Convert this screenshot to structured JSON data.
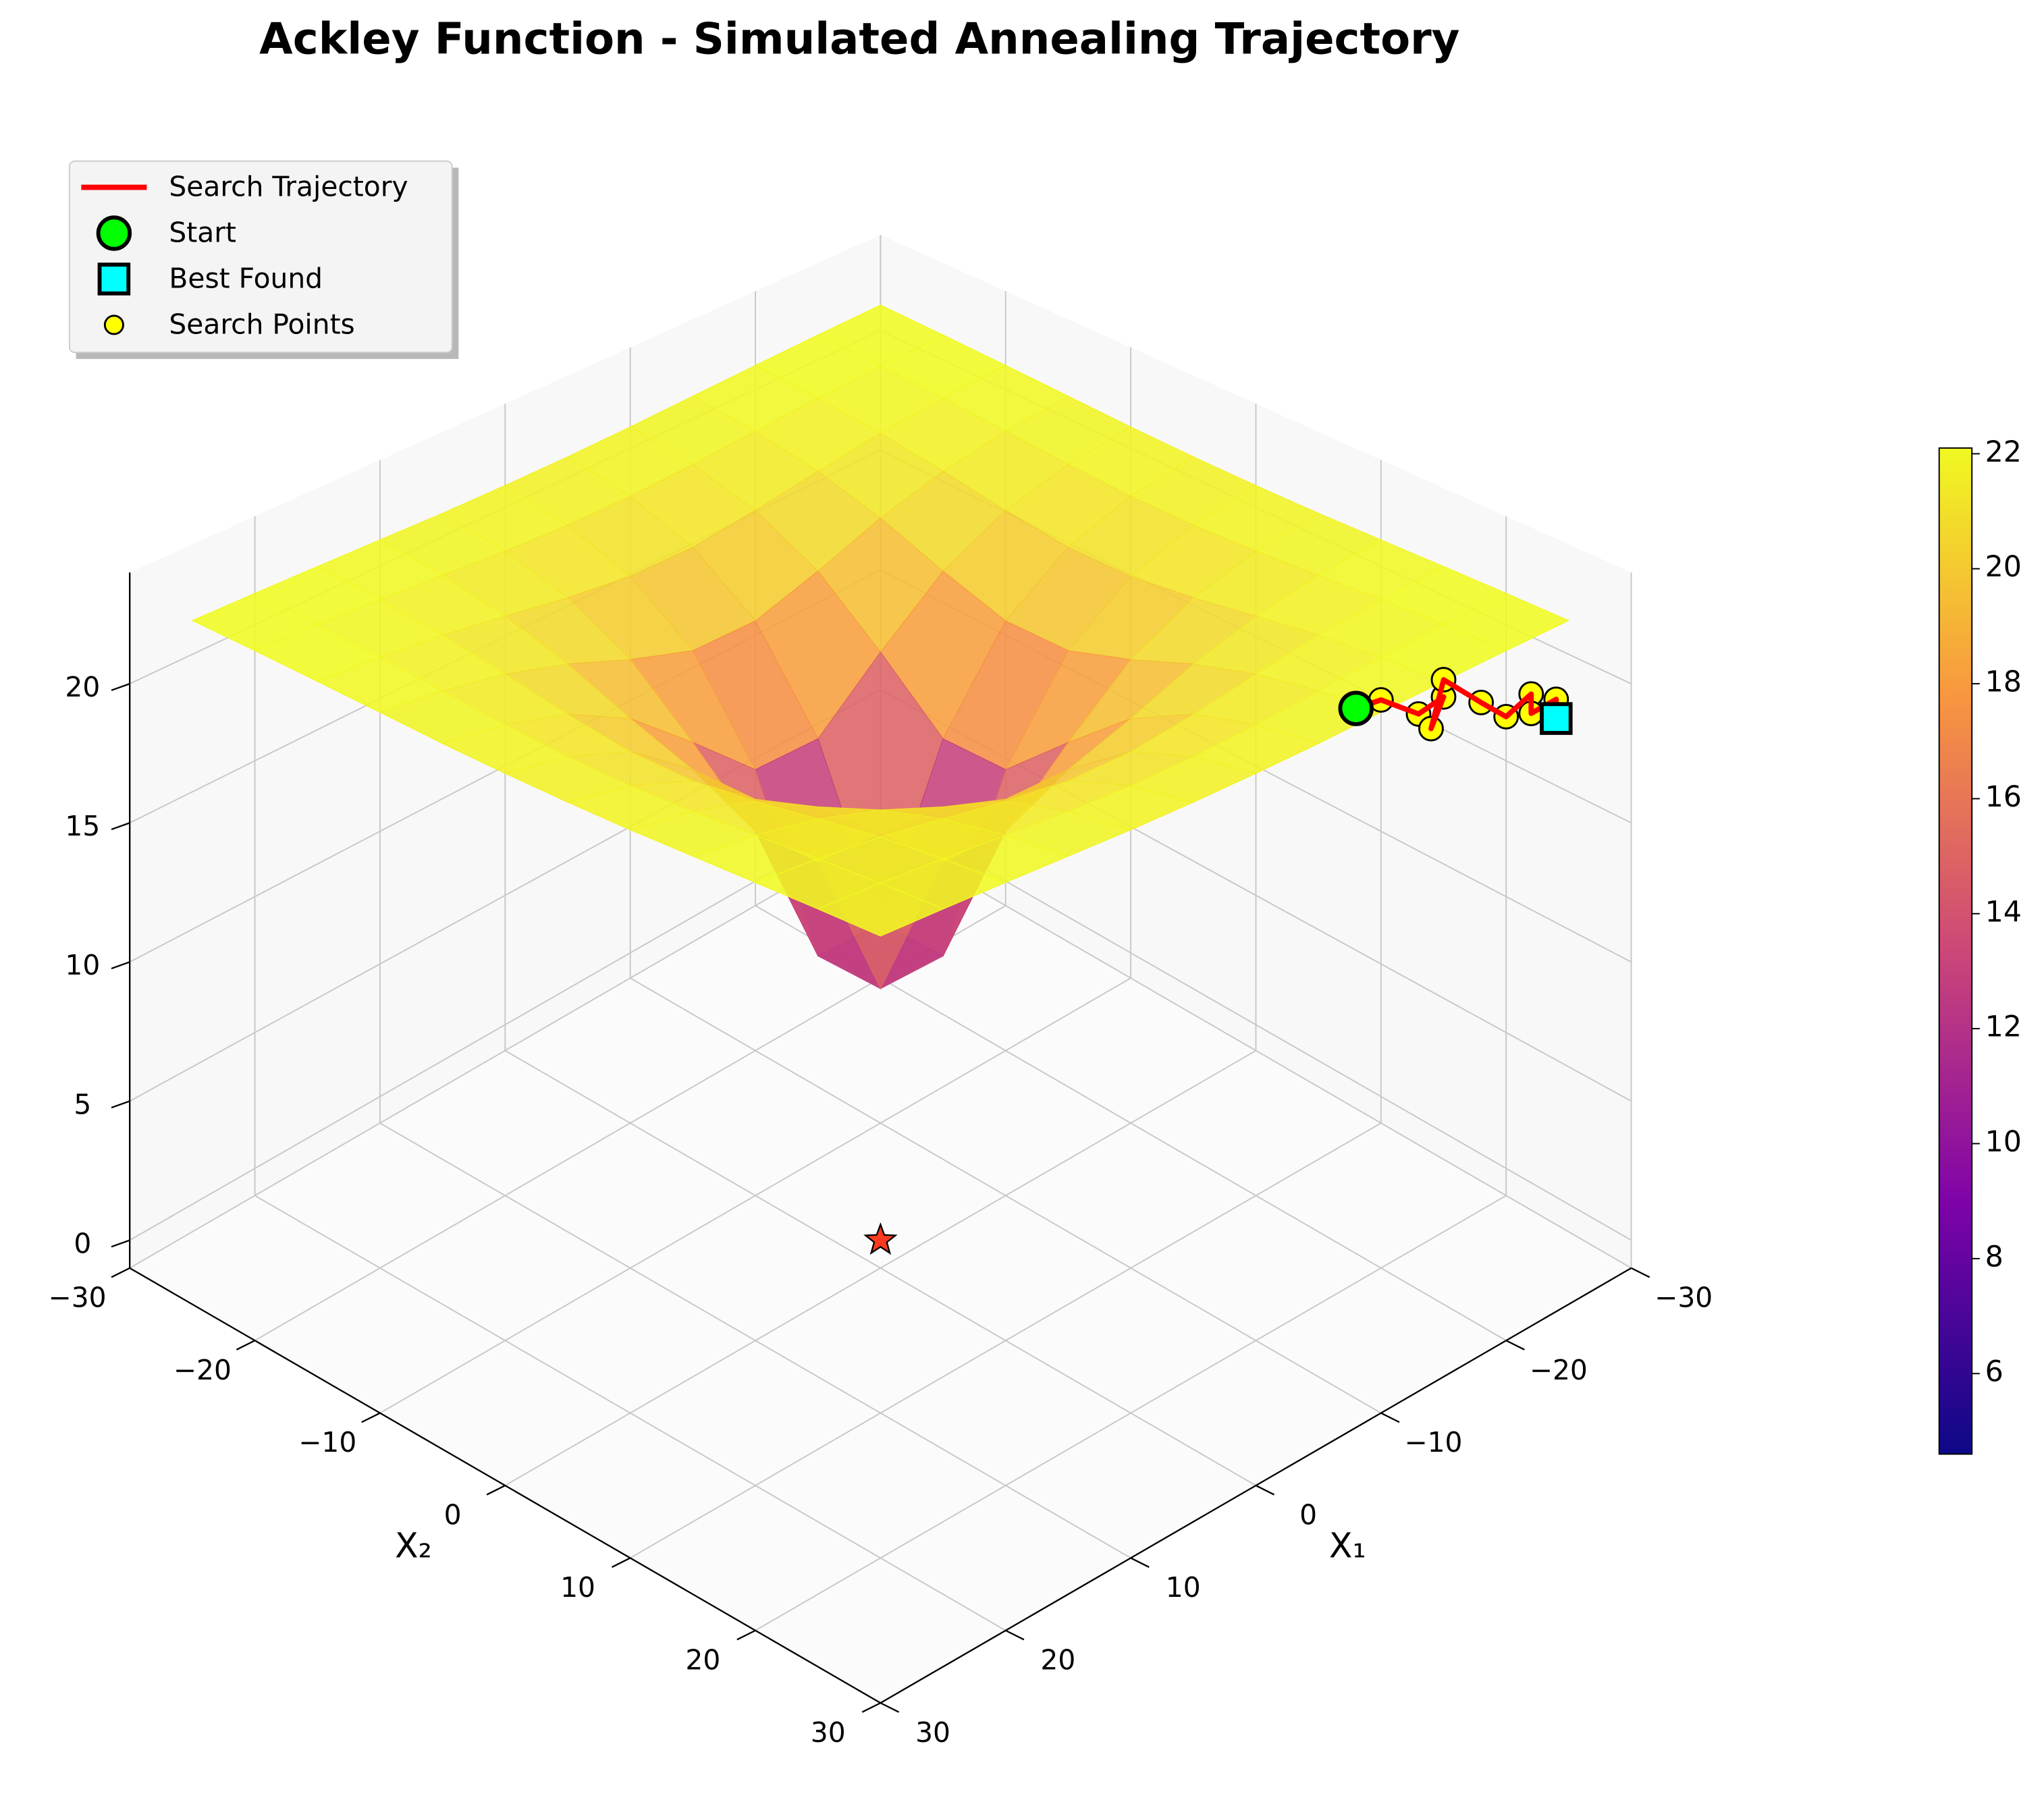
{
  "chart_data": {
    "type": "surface3d",
    "title": "Ackley Function - Simulated Annealing Trajectory",
    "xlabel": "X₁",
    "ylabel": "X₂",
    "colormap": "plasma",
    "x": [
      -27.5,
      -22.5,
      -17.5,
      -12.5,
      -7.5,
      -2.5,
      2.5,
      7.5,
      12.5,
      17.5,
      22.5,
      27.5
    ],
    "y": [
      -27.5,
      -22.5,
      -17.5,
      -12.5,
      -7.5,
      -2.5,
      2.5,
      7.5,
      12.5,
      17.5,
      22.5,
      27.5
    ],
    "z": [
      [
        22.27,
        22.22,
        22.15,
        22.07,
        21.99,
        21.95,
        21.95,
        21.99,
        22.07,
        22.15,
        22.22,
        22.27
      ],
      [
        22.22,
        22.13,
        21.99,
        21.82,
        21.65,
        21.54,
        21.54,
        21.65,
        21.82,
        21.99,
        22.13,
        22.22
      ],
      [
        22.15,
        21.99,
        21.75,
        21.39,
        21.0,
        20.71,
        20.71,
        21.0,
        21.39,
        21.75,
        21.99,
        22.15
      ],
      [
        22.07,
        21.82,
        21.39,
        20.71,
        19.81,
        19.05,
        19.05,
        19.81,
        20.71,
        21.39,
        21.82,
        22.07
      ],
      [
        21.99,
        21.65,
        21.0,
        19.81,
        17.89,
        15.81,
        15.81,
        17.89,
        19.81,
        21.0,
        21.65,
        21.99
      ],
      [
        21.95,
        21.54,
        20.71,
        19.05,
        15.81,
        10.22,
        10.22,
        15.81,
        19.05,
        20.71,
        21.54,
        21.95
      ],
      [
        21.95,
        21.54,
        20.71,
        19.05,
        15.81,
        10.22,
        10.22,
        15.81,
        19.05,
        20.71,
        21.54,
        21.95
      ],
      [
        21.99,
        21.65,
        21.0,
        19.81,
        17.89,
        15.81,
        15.81,
        17.89,
        19.81,
        21.0,
        21.65,
        21.99
      ],
      [
        22.07,
        21.82,
        21.39,
        20.71,
        19.81,
        19.05,
        19.05,
        19.81,
        20.71,
        21.39,
        21.82,
        22.07
      ],
      [
        22.15,
        21.99,
        21.75,
        21.39,
        21.0,
        20.71,
        20.71,
        21.0,
        21.39,
        21.75,
        21.99,
        22.15
      ],
      [
        22.22,
        22.13,
        21.99,
        21.82,
        21.65,
        21.54,
        21.54,
        21.65,
        21.82,
        21.99,
        22.13,
        22.22
      ],
      [
        22.27,
        22.22,
        22.15,
        22.07,
        21.99,
        21.95,
        21.95,
        21.99,
        22.07,
        22.15,
        22.22,
        22.27
      ]
    ],
    "xlim": [
      -30,
      30
    ],
    "ylim": [
      -30,
      30
    ],
    "zlim": [
      -1,
      24
    ],
    "xticks": [
      {
        "value": -30,
        "label": "−30"
      },
      {
        "value": -20,
        "label": "−20"
      },
      {
        "value": -10,
        "label": "−10"
      },
      0,
      10,
      20,
      30
    ],
    "yticks": [
      {
        "value": -30,
        "label": "−30"
      },
      {
        "value": -20,
        "label": "−20"
      },
      {
        "value": -10,
        "label": "−10"
      },
      0,
      10,
      20,
      30
    ],
    "zticks": [
      0,
      5,
      10,
      15,
      20
    ],
    "clim": [
      4.6,
      22.1
    ],
    "cticks": [
      6,
      8,
      10,
      12,
      14,
      16,
      18,
      20,
      22
    ],
    "grid": true,
    "legend": "upper left",
    "series": [
      {
        "name": "Search Trajectory",
        "marker": "line",
        "color": "#ff0000",
        "x": [
          -14,
          -15,
          -17,
          -18,
          -16,
          -19,
          -20,
          -21,
          -22,
          -23,
          -24,
          -25
        ],
        "y": [
          24,
          25,
          26,
          27,
          28,
          26,
          28,
          29,
          30,
          29,
          30,
          29
        ],
        "z": [
          21.2,
          21.5,
          20.8,
          21.4,
          20.9,
          21.6,
          21.0,
          20.5,
          21.3,
          20.2,
          20.7,
          19.6
        ]
      },
      {
        "name": "Start",
        "marker": "circle",
        "color": "#00ff00",
        "x": [
          -14
        ],
        "y": [
          24
        ],
        "z": [
          21.2
        ]
      },
      {
        "name": "Best Found",
        "marker": "square",
        "color": "#00ffff",
        "x": [
          -25
        ],
        "y": [
          29
        ],
        "z": [
          19.6
        ]
      },
      {
        "name": "Search Points",
        "marker": "dot",
        "color": "#ffff00",
        "x": [
          -14,
          -15,
          -17,
          -18,
          -16,
          -19,
          -20,
          -21,
          -22,
          -23,
          -24,
          -25
        ],
        "y": [
          24,
          25,
          26,
          27,
          28,
          26,
          28,
          29,
          30,
          29,
          30,
          29
        ],
        "z": [
          21.2,
          21.5,
          20.8,
          21.4,
          20.9,
          21.6,
          21.0,
          20.5,
          21.3,
          20.2,
          20.7,
          19.6
        ]
      }
    ],
    "global_min": {
      "x": 0,
      "y": 0,
      "z": 0,
      "color": "#ff3b1f"
    }
  }
}
